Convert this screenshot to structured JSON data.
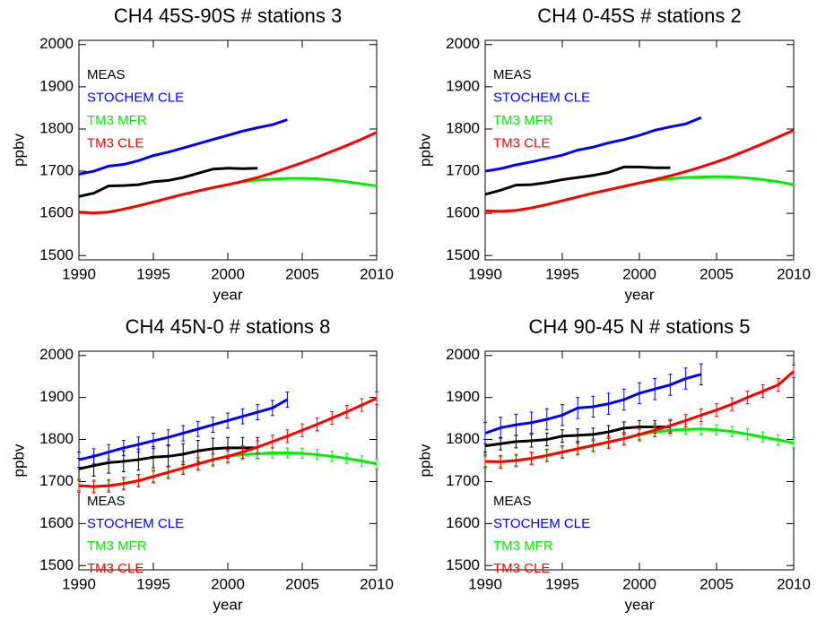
{
  "chart_data": [
    {
      "type": "line",
      "title": "CH4 45S-90S # stations 3",
      "xlabel": "year",
      "ylabel": "ppbv",
      "legend": "upper left",
      "x": [
        1990,
        1991,
        1992,
        1993,
        1994,
        1995,
        1996,
        1997,
        1998,
        1999,
        2000,
        2001,
        2002,
        2003,
        2004,
        2005,
        2006,
        2007,
        2008,
        2009,
        2010
      ],
      "xlim": [
        1990,
        2010
      ],
      "xticks": [
        1990,
        1995,
        2000,
        2005,
        2010
      ],
      "ylim": [
        1490,
        2010
      ],
      "yticks": [
        1500,
        1600,
        1700,
        1800,
        1900,
        2000
      ],
      "series": [
        {
          "name": "MEAS",
          "color": "#000000",
          "values": [
            1640,
            1648,
            1665,
            1666,
            1668,
            1675,
            1678,
            1685,
            1695,
            1705,
            1707,
            1706,
            1707,
            null,
            null,
            null,
            null,
            null,
            null,
            null,
            null
          ]
        },
        {
          "name": "STOCHEM CLE",
          "color": "#0000ff",
          "values": [
            1693,
            1700,
            1712,
            1716,
            1725,
            1737,
            1745,
            1755,
            1765,
            1775,
            1785,
            1795,
            1803,
            1810,
            1822,
            null,
            null,
            null,
            null,
            null,
            null
          ]
        },
        {
          "name": "TM3 MFR",
          "color": "#00ee00",
          "values": [
            1603,
            1601,
            1603,
            1610,
            1618,
            1627,
            1636,
            1645,
            1653,
            1661,
            1668,
            1675,
            1679,
            1681,
            1683,
            1683,
            1682,
            1679,
            1675,
            1670,
            1665
          ]
        },
        {
          "name": "TM3 CLE",
          "color": "#ff0000",
          "values": [
            1603,
            1601,
            1603,
            1610,
            1618,
            1627,
            1636,
            1645,
            1653,
            1661,
            1668,
            1676,
            1685,
            1696,
            1708,
            1720,
            1733,
            1747,
            1761,
            1776,
            1792
          ]
        }
      ]
    },
    {
      "type": "line",
      "title": "CH4 0-45S # stations 2",
      "xlabel": "year",
      "ylabel": "ppbv",
      "legend": "upper left",
      "x": [
        1990,
        1991,
        1992,
        1993,
        1994,
        1995,
        1996,
        1997,
        1998,
        1999,
        2000,
        2001,
        2002,
        2003,
        2004,
        2005,
        2006,
        2007,
        2008,
        2009,
        2010
      ],
      "xlim": [
        1990,
        2010
      ],
      "xticks": [
        1990,
        1995,
        2000,
        2005,
        2010
      ],
      "ylim": [
        1490,
        2010
      ],
      "yticks": [
        1500,
        1600,
        1700,
        1800,
        1900,
        2000
      ],
      "series": [
        {
          "name": "MEAS",
          "color": "#000000",
          "values": [
            1645,
            1655,
            1667,
            1668,
            1673,
            1680,
            1685,
            1690,
            1697,
            1710,
            1710,
            1708,
            1708,
            null,
            null,
            null,
            null,
            null,
            null,
            null,
            null
          ]
        },
        {
          "name": "STOCHEM CLE",
          "color": "#0000ff",
          "values": [
            1700,
            1706,
            1715,
            1722,
            1730,
            1738,
            1750,
            1757,
            1767,
            1775,
            1785,
            1797,
            1805,
            1812,
            1827,
            null,
            null,
            null,
            null,
            null,
            null
          ]
        },
        {
          "name": "TM3 MFR",
          "color": "#00ee00",
          "values": [
            1606,
            1605,
            1607,
            1613,
            1621,
            1630,
            1639,
            1648,
            1656,
            1664,
            1672,
            1678,
            1682,
            1685,
            1686,
            1687,
            1686,
            1684,
            1680,
            1675,
            1668
          ]
        },
        {
          "name": "TM3 CLE",
          "color": "#ff0000",
          "values": [
            1606,
            1605,
            1607,
            1613,
            1621,
            1630,
            1639,
            1648,
            1656,
            1664,
            1672,
            1680,
            1689,
            1699,
            1710,
            1722,
            1735,
            1750,
            1765,
            1781,
            1797
          ]
        }
      ]
    },
    {
      "type": "line",
      "title": "CH4 45N-0 # stations 8",
      "xlabel": "year",
      "ylabel": "ppbv",
      "legend": "lower left",
      "x": [
        1990,
        1991,
        1992,
        1993,
        1994,
        1995,
        1996,
        1997,
        1998,
        1999,
        2000,
        2001,
        2002,
        2003,
        2004,
        2005,
        2006,
        2007,
        2008,
        2009,
        2010
      ],
      "xlim": [
        1990,
        2010
      ],
      "xticks": [
        1990,
        1995,
        2000,
        2005,
        2010
      ],
      "ylim": [
        1490,
        2010
      ],
      "yticks": [
        1500,
        1600,
        1700,
        1800,
        1900,
        2000
      ],
      "series": [
        {
          "name": "MEAS",
          "color": "#000000",
          "values": [
            1730,
            1738,
            1745,
            1748,
            1752,
            1758,
            1760,
            1765,
            1773,
            1778,
            1780,
            1780,
            1780,
            null,
            null,
            null,
            null,
            null,
            null,
            null,
            null
          ],
          "errors": [
            25,
            25,
            25,
            25,
            25,
            25,
            25,
            25,
            25,
            25,
            25,
            25,
            25,
            null,
            null,
            null,
            null,
            null,
            null,
            null,
            null
          ]
        },
        {
          "name": "STOCHEM CLE",
          "color": "#0000ff",
          "values": [
            1752,
            1760,
            1770,
            1780,
            1788,
            1797,
            1805,
            1815,
            1825,
            1835,
            1845,
            1855,
            1865,
            1875,
            1895,
            null,
            null,
            null,
            null,
            null,
            null
          ],
          "errors": [
            18,
            18,
            18,
            18,
            18,
            18,
            18,
            18,
            18,
            18,
            18,
            18,
            18,
            18,
            18,
            null,
            null,
            null,
            null,
            null,
            null
          ]
        },
        {
          "name": "TM3 MFR",
          "color": "#00ee00",
          "values": [
            1690,
            1688,
            1690,
            1695,
            1702,
            1712,
            1722,
            1732,
            1742,
            1752,
            1760,
            1764,
            1766,
            1768,
            1768,
            1767,
            1764,
            1760,
            1755,
            1749,
            1742
          ],
          "errors": [
            12,
            12,
            12,
            12,
            12,
            12,
            12,
            12,
            12,
            12,
            12,
            12,
            12,
            12,
            12,
            12,
            12,
            12,
            12,
            12,
            12
          ]
        },
        {
          "name": "TM3 CLE",
          "color": "#ff0000",
          "values": [
            1690,
            1688,
            1690,
            1695,
            1702,
            1712,
            1722,
            1732,
            1742,
            1752,
            1760,
            1770,
            1782,
            1795,
            1808,
            1822,
            1836,
            1851,
            1866,
            1882,
            1898
          ],
          "errors": [
            15,
            15,
            15,
            15,
            15,
            15,
            15,
            15,
            15,
            15,
            15,
            15,
            15,
            15,
            15,
            15,
            15,
            15,
            15,
            15,
            15
          ]
        }
      ]
    },
    {
      "type": "line",
      "title": "CH4 90-45 N # stations 5",
      "xlabel": "year",
      "ylabel": "ppbv",
      "legend": "lower left",
      "x": [
        1990,
        1991,
        1992,
        1993,
        1994,
        1995,
        1996,
        1997,
        1998,
        1999,
        2000,
        2001,
        2002,
        2003,
        2004,
        2005,
        2006,
        2007,
        2008,
        2009,
        2010
      ],
      "xlim": [
        1990,
        2010
      ],
      "xticks": [
        1990,
        1995,
        2000,
        2005,
        2010
      ],
      "ylim": [
        1490,
        2010
      ],
      "yticks": [
        1500,
        1600,
        1700,
        1800,
        1900,
        2000
      ],
      "series": [
        {
          "name": "MEAS",
          "color": "#000000",
          "values": [
            1785,
            1790,
            1795,
            1797,
            1800,
            1808,
            1810,
            1812,
            1818,
            1827,
            1830,
            1830,
            1830,
            null,
            null,
            null,
            null,
            null,
            null,
            null,
            null
          ],
          "errors": [
            15,
            15,
            15,
            15,
            15,
            15,
            15,
            15,
            15,
            15,
            15,
            15,
            15,
            null,
            null,
            null,
            null,
            null,
            null,
            null,
            null
          ]
        },
        {
          "name": "STOCHEM CLE",
          "color": "#0000ff",
          "values": [
            1815,
            1828,
            1835,
            1840,
            1848,
            1858,
            1875,
            1878,
            1885,
            1895,
            1910,
            1920,
            1930,
            1945,
            1955,
            null,
            null,
            null,
            null,
            null,
            null
          ],
          "errors": [
            25,
            25,
            25,
            25,
            25,
            25,
            25,
            25,
            25,
            25,
            25,
            25,
            25,
            25,
            25,
            null,
            null,
            null,
            null,
            null,
            null
          ]
        },
        {
          "name": "TM3 MFR",
          "color": "#00ee00",
          "values": [
            1748,
            1747,
            1750,
            1755,
            1762,
            1770,
            1778,
            1786,
            1794,
            1802,
            1812,
            1818,
            1822,
            1824,
            1825,
            1823,
            1819,
            1813,
            1806,
            1799,
            1792
          ],
          "errors": [
            12,
            12,
            12,
            12,
            12,
            12,
            12,
            12,
            12,
            12,
            12,
            12,
            12,
            12,
            12,
            12,
            12,
            12,
            12,
            12,
            12
          ]
        },
        {
          "name": "TM3 CLE",
          "color": "#ff0000",
          "values": [
            1748,
            1747,
            1750,
            1755,
            1762,
            1770,
            1778,
            1786,
            1794,
            1802,
            1812,
            1822,
            1833,
            1845,
            1858,
            1870,
            1884,
            1900,
            1915,
            1930,
            1962
          ],
          "errors": [
            15,
            15,
            15,
            15,
            15,
            15,
            15,
            15,
            15,
            15,
            15,
            15,
            15,
            15,
            15,
            15,
            15,
            15,
            15,
            15,
            15
          ]
        }
      ]
    }
  ]
}
